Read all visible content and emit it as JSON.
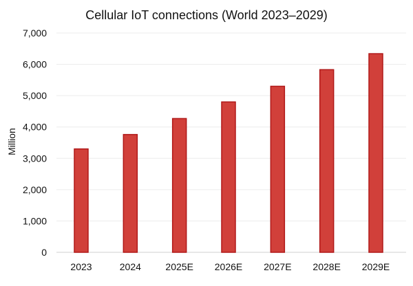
{
  "chart_data": {
    "type": "bar",
    "title": "Cellular IoT connections (World 2023–2029)",
    "ylabel": "Million",
    "xlabel": "",
    "categories": [
      "2023",
      "2024",
      "2025E",
      "2026E",
      "2027E",
      "2028E",
      "2029E"
    ],
    "values": [
      3300,
      3760,
      4270,
      4800,
      5300,
      5830,
      6340
    ],
    "ylim": [
      0,
      7000
    ],
    "yticks": [
      0,
      1000,
      2000,
      3000,
      4000,
      5000,
      6000,
      7000
    ],
    "ytick_labels": [
      "0",
      "1,000",
      "2,000",
      "3,000",
      "4,000",
      "5,000",
      "6,000",
      "7,000"
    ],
    "grid": true,
    "legend": "none",
    "colors": {
      "bar_fill": "#d1403a",
      "bar_stroke": "#b01818"
    }
  }
}
